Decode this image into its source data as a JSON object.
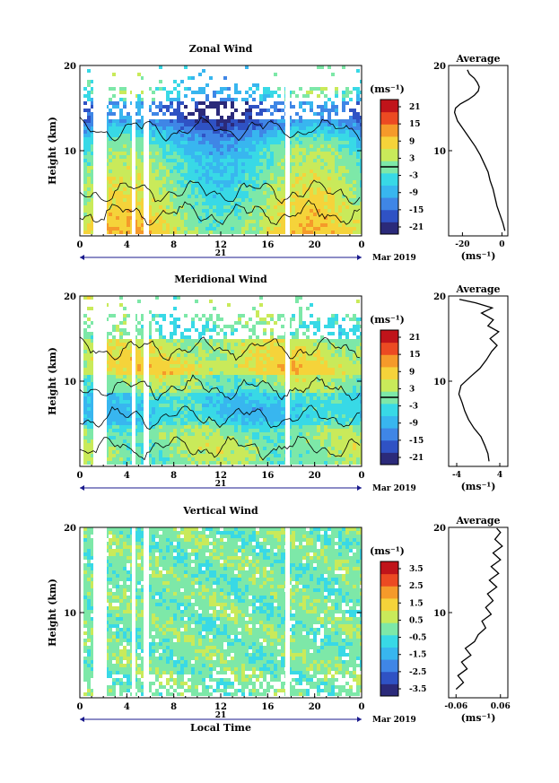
{
  "chart_data": [
    {
      "type": "heatmap",
      "title": "Zonal Wind",
      "ylabel": "Height (km)",
      "ylim": [
        0,
        20
      ],
      "yticks": [
        "10",
        "20"
      ],
      "xticks": [
        "0",
        "4",
        "8",
        "12",
        "16",
        "20",
        "0"
      ],
      "day_label": "21",
      "date_label": "Mar 2019",
      "colorbar": {
        "unit": "(ms⁻¹)",
        "labels": [
          "21",
          "15",
          "9",
          "3",
          "-3",
          "-9",
          "-15",
          "-21"
        ],
        "range": [
          -24,
          24
        ]
      },
      "average": {
        "title": "Average",
        "xlabel": "(ms⁻¹)",
        "xticks": [
          "-20",
          "0"
        ],
        "xlim": [
          -27,
          3
        ],
        "profile": [
          {
            "h": 0.6,
            "v": 1.5
          },
          {
            "h": 1.5,
            "v": 0.5
          },
          {
            "h": 2.5,
            "v": -1.0
          },
          {
            "h": 3.5,
            "v": -2.5
          },
          {
            "h": 4.5,
            "v": -3.5
          },
          {
            "h": 5.5,
            "v": -4.5
          },
          {
            "h": 6.5,
            "v": -6.0
          },
          {
            "h": 7.5,
            "v": -7.0
          },
          {
            "h": 8.5,
            "v": -9.0
          },
          {
            "h": 9.5,
            "v": -11.0
          },
          {
            "h": 10.5,
            "v": -13.5
          },
          {
            "h": 11.5,
            "v": -16.5
          },
          {
            "h": 12.5,
            "v": -19.5
          },
          {
            "h": 13.5,
            "v": -22.5
          },
          {
            "h": 14.5,
            "v": -24.0
          },
          {
            "h": 15.0,
            "v": -23.5
          },
          {
            "h": 15.5,
            "v": -21.0
          },
          {
            "h": 16.0,
            "v": -17.0
          },
          {
            "h": 16.5,
            "v": -14.0
          },
          {
            "h": 17.0,
            "v": -12.0
          },
          {
            "h": 17.5,
            "v": -11.5
          },
          {
            "h": 18.0,
            "v": -12.5
          },
          {
            "h": 18.5,
            "v": -14.0
          },
          {
            "h": 19.0,
            "v": -16.5
          },
          {
            "h": 19.5,
            "v": -17.5
          }
        ]
      }
    },
    {
      "type": "heatmap",
      "title": "Meridional Wind",
      "ylabel": "Height (km)",
      "ylim": [
        0,
        20
      ],
      "yticks": [
        "10",
        "20"
      ],
      "xticks": [
        "0",
        "4",
        "8",
        "12",
        "16",
        "20",
        "0"
      ],
      "day_label": "21",
      "date_label": "Mar 2019",
      "colorbar": {
        "unit": "(ms⁻¹)",
        "labels": [
          "21",
          "15",
          "9",
          "3",
          "-3",
          "-9",
          "-15",
          "-21"
        ],
        "range": [
          -24,
          24
        ]
      },
      "average": {
        "title": "Average",
        "xlabel": "(ms⁻¹)",
        "xticks": [
          "-4",
          "4"
        ],
        "xlim": [
          -5.5,
          5.5
        ],
        "profile": [
          {
            "h": 0.6,
            "v": 2.0
          },
          {
            "h": 1.5,
            "v": 1.8
          },
          {
            "h": 2.5,
            "v": 1.2
          },
          {
            "h": 3.5,
            "v": 0.5
          },
          {
            "h": 4.5,
            "v": -0.8
          },
          {
            "h": 5.5,
            "v": -1.8
          },
          {
            "h": 6.5,
            "v": -2.5
          },
          {
            "h": 7.5,
            "v": -3.0
          },
          {
            "h": 8.5,
            "v": -3.6
          },
          {
            "h": 9.5,
            "v": -3.2
          },
          {
            "h": 10.5,
            "v": -1.5
          },
          {
            "h": 11.5,
            "v": 0.3
          },
          {
            "h": 12.5,
            "v": 1.5
          },
          {
            "h": 13.5,
            "v": 2.5
          },
          {
            "h": 14.2,
            "v": 3.5
          },
          {
            "h": 15.0,
            "v": 2.2
          },
          {
            "h": 15.8,
            "v": 3.8
          },
          {
            "h": 16.5,
            "v": 1.8
          },
          {
            "h": 17.2,
            "v": 2.8
          },
          {
            "h": 18.0,
            "v": 0.6
          },
          {
            "h": 18.6,
            "v": 2.6
          },
          {
            "h": 19.2,
            "v": -0.5
          },
          {
            "h": 19.6,
            "v": -3.5
          }
        ]
      }
    },
    {
      "type": "heatmap",
      "title": "Vertical Wind",
      "ylabel": "Height (km)",
      "ylim": [
        0,
        20
      ],
      "yticks": [
        "10",
        "20"
      ],
      "xticks": [
        "0",
        "4",
        "8",
        "12",
        "16",
        "20",
        "0"
      ],
      "day_label": "21",
      "date_label": "Mar 2019",
      "xlabel": "Local Time",
      "colorbar": {
        "unit": "(ms⁻¹)",
        "labels": [
          "3.5",
          "2.5",
          "1.5",
          "0.5",
          "-0.5",
          "-1.5",
          "-2.5",
          "-3.5"
        ],
        "range": [
          -4,
          4
        ]
      },
      "average": {
        "title": "Average",
        "xlabel": "(ms⁻¹)",
        "xticks": [
          "-0.06",
          "0.06"
        ],
        "xlim": [
          -0.08,
          0.08
        ],
        "profile": [
          {
            "h": 1.0,
            "v": -0.06
          },
          {
            "h": 1.8,
            "v": -0.04
          },
          {
            "h": 2.6,
            "v": -0.055
          },
          {
            "h": 3.4,
            "v": -0.03
          },
          {
            "h": 4.2,
            "v": -0.045
          },
          {
            "h": 5.0,
            "v": -0.02
          },
          {
            "h": 5.8,
            "v": -0.035
          },
          {
            "h": 6.6,
            "v": -0.01
          },
          {
            "h": 7.4,
            "v": 0.0
          },
          {
            "h": 8.2,
            "v": 0.02
          },
          {
            "h": 9.0,
            "v": 0.01
          },
          {
            "h": 9.8,
            "v": 0.035
          },
          {
            "h": 10.6,
            "v": 0.02
          },
          {
            "h": 11.4,
            "v": 0.04
          },
          {
            "h": 12.2,
            "v": 0.025
          },
          {
            "h": 13.0,
            "v": 0.05
          },
          {
            "h": 13.8,
            "v": 0.03
          },
          {
            "h": 14.6,
            "v": 0.055
          },
          {
            "h": 15.4,
            "v": 0.035
          },
          {
            "h": 16.2,
            "v": 0.06
          },
          {
            "h": 17.0,
            "v": 0.04
          },
          {
            "h": 17.8,
            "v": 0.065
          },
          {
            "h": 18.6,
            "v": 0.045
          },
          {
            "h": 19.4,
            "v": 0.06
          },
          {
            "h": 19.9,
            "v": 0.05
          }
        ]
      }
    }
  ],
  "colors": {
    "colormap": [
      "#2b2a7a",
      "#2f52c4",
      "#3f86e6",
      "#38b6ef",
      "#38d9e6",
      "#7de8a8",
      "#c9ea5a",
      "#f5d33a",
      "#f59a2a",
      "#ec4a22",
      "#c0141a"
    ],
    "contour": "#000000",
    "accent": "#1a1a8c"
  }
}
